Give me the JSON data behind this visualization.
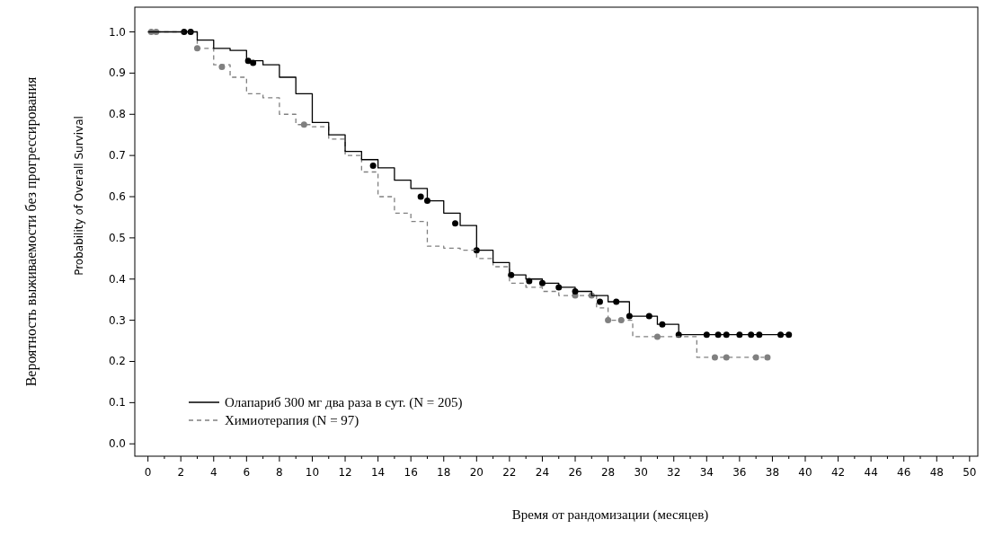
{
  "chart_data": {
    "type": "step",
    "xlabel": "Время от рандомизации (месяцев)",
    "ylabel": "Вероятность выживаемости без прогрессирования",
    "annotations": [
      "Probability of Overall Survival"
    ],
    "xlim": [
      -0.8,
      50.5
    ],
    "ylim": [
      -0.03,
      1.06
    ],
    "xticks": [
      0,
      {
        "value": 1,
        "label": null
      },
      2,
      {
        "value": 3,
        "label": null
      },
      4,
      {
        "value": 5,
        "label": null
      },
      6,
      {
        "value": 7,
        "label": null
      },
      8,
      {
        "value": 9,
        "label": null
      },
      10,
      {
        "value": 11,
        "label": null
      },
      12,
      {
        "value": 13,
        "label": null
      },
      14,
      {
        "value": 15,
        "label": null
      },
      16,
      {
        "value": 17,
        "label": null
      },
      18,
      {
        "value": 19,
        "label": null
      },
      20,
      {
        "value": 21,
        "label": null
      },
      22,
      {
        "value": 23,
        "label": null
      },
      24,
      {
        "value": 25,
        "label": null
      },
      26,
      {
        "value": 27,
        "label": null
      },
      28,
      {
        "value": 29,
        "label": null
      },
      30,
      {
        "value": 31,
        "label": null
      },
      32,
      {
        "value": 33,
        "label": null
      },
      34,
      {
        "value": 35,
        "label": null
      },
      36,
      {
        "value": 37,
        "label": null
      },
      38,
      {
        "value": 39,
        "label": null
      },
      40,
      {
        "value": 41,
        "label": null
      },
      42,
      {
        "value": 43,
        "label": null
      },
      44,
      {
        "value": 45,
        "label": null
      },
      46,
      {
        "value": 47,
        "label": null
      },
      48,
      {
        "value": 49,
        "label": null
      },
      50
    ],
    "yticks": [
      {
        "value": 0,
        "label": "0.0"
      },
      {
        "value": 0.1,
        "label": "0.1"
      },
      {
        "value": 0.2,
        "label": "0.2"
      },
      {
        "value": 0.3,
        "label": "0.3"
      },
      {
        "value": 0.4,
        "label": "0.4"
      },
      {
        "value": 0.5,
        "label": "0.5"
      },
      {
        "value": 0.6,
        "label": "0.6"
      },
      {
        "value": 0.7,
        "label": "0.7"
      },
      {
        "value": 0.8,
        "label": "0.8"
      },
      {
        "value": 0.9,
        "label": "0.9"
      },
      {
        "value": 1,
        "label": "1.0"
      }
    ],
    "grid": false,
    "legend": "bottom left",
    "series": [
      {
        "name": "Олапариб 300 мг два раза в сут. (N = 205)",
        "color": "#000000",
        "line_style": "solid",
        "x": [
          0,
          2.5,
          3,
          4,
          5,
          6,
          7,
          8,
          9,
          10,
          11,
          12,
          13,
          14,
          15,
          16,
          17,
          18,
          19,
          20,
          21,
          22,
          23,
          24,
          25,
          26,
          27,
          28,
          29,
          29.3,
          30.5,
          31,
          32,
          32.3,
          39
        ],
        "values": [
          1,
          1,
          0.98,
          0.96,
          0.955,
          0.93,
          0.92,
          0.89,
          0.85,
          0.78,
          0.75,
          0.71,
          0.69,
          0.67,
          0.64,
          0.62,
          0.59,
          0.56,
          0.53,
          0.47,
          0.44,
          0.41,
          0.4,
          0.39,
          0.38,
          0.37,
          0.36,
          0.345,
          0.345,
          0.31,
          0.31,
          0.29,
          0.29,
          0.265,
          0.265
        ]
      },
      {
        "name": "Химиотерапия (N = 97)",
        "color": "#808080",
        "line_style": "dashed",
        "x": [
          0,
          2,
          3,
          4,
          5,
          6,
          7,
          8,
          9,
          10,
          11,
          12,
          13,
          14,
          15,
          16,
          17,
          18,
          19,
          20,
          21,
          22,
          23,
          24,
          25,
          26,
          27,
          27.3,
          28,
          29,
          29.5,
          31,
          33.3,
          33.4,
          37.5
        ],
        "values": [
          1,
          1,
          0.96,
          0.92,
          0.89,
          0.85,
          0.84,
          0.8,
          0.775,
          0.77,
          0.74,
          0.7,
          0.66,
          0.6,
          0.56,
          0.54,
          0.48,
          0.475,
          0.47,
          0.45,
          0.43,
          0.39,
          0.38,
          0.37,
          0.36,
          0.36,
          0.36,
          0.33,
          0.3,
          0.3,
          0.26,
          0.26,
          0.26,
          0.21,
          0.21
        ]
      },
      {
        "type": "scatter",
        "color": "#000000",
        "marker": "circle",
        "x": [
          2.2,
          2.6,
          6.1,
          6.4,
          13.7,
          16.6,
          17,
          18.7,
          20,
          22.1,
          23.2,
          24,
          25,
          26,
          27.5,
          28.5,
          29.3,
          30.5,
          31.3,
          32.3,
          34,
          34.7,
          35.2,
          36,
          36.7,
          37.2,
          38.5,
          39
        ],
        "values": [
          1,
          1,
          0.93,
          0.925,
          0.675,
          0.6,
          0.59,
          0.535,
          0.47,
          0.41,
          0.395,
          0.39,
          0.38,
          0.37,
          0.345,
          0.345,
          0.31,
          0.31,
          0.29,
          0.265,
          0.265,
          0.265,
          0.265,
          0.265,
          0.265,
          0.265,
          0.265,
          0.265
        ]
      },
      {
        "type": "scatter",
        "color": "#808080",
        "marker": "circle",
        "x": [
          0.2,
          0.5,
          3,
          4.5,
          9.5,
          26,
          27,
          28,
          28.8,
          31,
          34.5,
          35.2,
          37,
          37.7
        ],
        "values": [
          1,
          1,
          0.96,
          0.915,
          0.775,
          0.36,
          0.36,
          0.3,
          0.3,
          0.26,
          0.21,
          0.21,
          0.21,
          0.21
        ]
      }
    ]
  }
}
